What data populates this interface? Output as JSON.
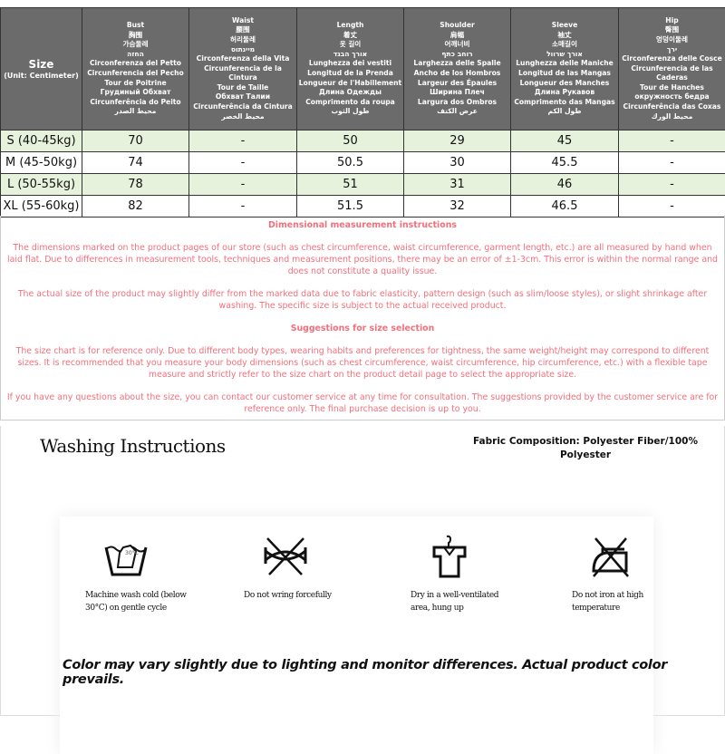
{
  "table": {
    "size_header": {
      "title": "Size",
      "unit": "(Unit: Centimeter)"
    },
    "columns": [
      {
        "lines": [
          "Bust",
          "胸围",
          "가슴둘레",
          "החזה",
          "Circonferenza del Petto",
          "Circunferencia del Pecho",
          "Tour de Poitrine",
          "Грудиный Обхват",
          "Circunferência do Peito",
          "محيط الصدر"
        ]
      },
      {
        "lines": [
          "Waist",
          "腰围",
          "허리둘레",
          "מיינתוס",
          "Circonferenza della Vita",
          "Circunferencia de la Cintura",
          "Tour de Taille",
          "Обхват Талии",
          "Circunferência da Cintura",
          "محيط الخصر"
        ]
      },
      {
        "lines": [
          "Length",
          "着丈",
          "옷 길이",
          "אורך הבגד",
          "Lunghezza dei vestiti",
          "Longitud de la Prenda",
          "Longueur de l'Habillement",
          "Длина Одежды",
          "Comprimento da roupa",
          "طول الثوب"
        ]
      },
      {
        "lines": [
          "Shoulder",
          "肩幅",
          "어깨너비",
          "רוחב כתף",
          "Larghezza delle Spalle",
          "Ancho de los Hombros",
          "Largeur des Épaules",
          "Ширина Плеч",
          "Largura dos Ombros",
          "عرض الكتف"
        ]
      },
      {
        "lines": [
          "Sleeve",
          "袖丈",
          "소매길이",
          "אורך שרוול",
          "Lunghezza delle Maniche",
          "Longitud de las Mangas",
          "Longueur des Manches",
          "Длина Рукавов",
          "Comprimento das Mangas",
          "طول الكم"
        ]
      },
      {
        "lines": [
          "Hip",
          "臀围",
          "엉덩이둘레",
          "ירך",
          "Circonferenza delle Cosce",
          "Circunferencia de las Caderas",
          "Tour de Hanches",
          "окружность бедра",
          "Circunferência das Coxas",
          "محيط الورك"
        ]
      }
    ],
    "rows": [
      [
        "S (40-45kg)",
        "70",
        "-",
        "50",
        "29",
        "45",
        "-"
      ],
      [
        "M (45-50kg)",
        "74",
        "-",
        "50.5",
        "30",
        "45.5",
        "-"
      ],
      [
        "L (50-55kg)",
        "78",
        "-",
        "51",
        "31",
        "46",
        "-"
      ],
      [
        "XL (55-60kg)",
        "82",
        "-",
        "51.5",
        "32",
        "46.5",
        "-"
      ]
    ]
  },
  "notes": {
    "title1": "Dimensional measurement instructions",
    "p1": "The dimensions marked on the product pages of our store (such as chest circumference, waist circumference, garment length, etc.) are all measured by hand when laid flat. Due to differences in measurement tools, techniques and measurement positions, there may be an error of ±1-3cm. This error is within the normal range and does not constitute a quality issue.",
    "p2": "The actual size of the product may slightly differ from the marked data due to fabric elasticity, pattern design (such as slim/loose styles), or slight shrinkage after washing. The specific size is subject to the actual received product.",
    "title2": "Suggestions for size selection",
    "p3": "The size chart is for reference only. Due to different body types, wearing habits and preferences for tightness, the same weight/height may correspond to different sizes. It is recommended that you measure your body dimensions (such as chest circumference, waist circumference, hip circumference, etc.) with a flexible tape measure and strictly refer to the size chart on the product detail page to select the appropriate size.",
    "p4": "If you have any questions about the size, you can contact our customer service at any time for consultation. The suggestions provided by the customer service are for reference only. The final purchase decision is up to you."
  },
  "washing": {
    "title": "Washing Instructions",
    "fabric": "Fabric Composition:  Polyester Fiber/100% Polyester",
    "items": [
      {
        "icon": "hand-wash-icon",
        "label": "Machine wash cold (below 30°C) on gentle cycle",
        "temp": "30°C"
      },
      {
        "icon": "do-not-wring-icon",
        "label": "Do not wring forcefully"
      },
      {
        "icon": "hang-dry-icon",
        "label": "Dry in a well-ventilated area, hung up"
      },
      {
        "icon": "do-not-iron-icon",
        "label": "Do not iron at high temperature"
      }
    ],
    "color_note": "Color may vary slightly due to lighting and monitor differences. Actual product color prevails."
  },
  "colors": {
    "header_bg": "#6b6b6b",
    "row_green": "#e6f2dc",
    "note_text": "#f2707c"
  }
}
